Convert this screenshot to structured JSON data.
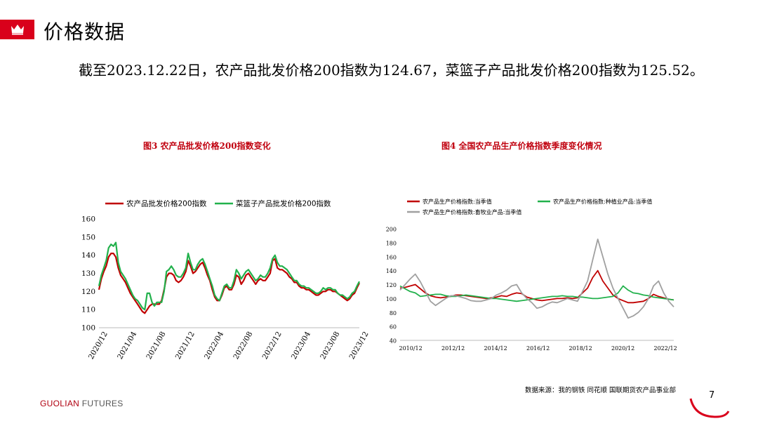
{
  "header": {
    "title": "价格数据"
  },
  "intro_text": "截至2023.12.22日，农产品批发价格200指数为124.67，菜篮子产品批发价格200指数为125.52。",
  "colors": {
    "accent": "#d9001b",
    "series_red": "#c00000",
    "series_green": "#22b14c",
    "series_grey": "#a0a0a0"
  },
  "footer": {
    "source": "数据来源：我的钢铁 同花顺 国联期货农产品事业部",
    "brand_main": "GUOLIAN",
    "brand_sub": "FUTURES",
    "page_number": "7"
  },
  "chart_data": [
    {
      "figure_title": "图3 农产品批发价格200指数变化",
      "type": "line",
      "ylim": [
        100,
        160
      ],
      "yticks": [
        100,
        110,
        120,
        130,
        140,
        150,
        160
      ],
      "xticks": [
        "2020/12",
        "2021/04",
        "2021/08",
        "2021/12",
        "2022/04",
        "2022/08",
        "2022/12",
        "2023/04",
        "2023/08",
        "2023/12"
      ],
      "series": [
        {
          "name": "农产品批发价格200指数",
          "values": [
            121,
            127,
            131,
            134,
            139,
            141,
            141,
            139,
            133,
            129,
            127,
            125,
            122,
            119,
            117,
            115,
            113,
            111,
            109,
            108,
            110,
            112,
            113,
            113,
            113,
            113,
            115,
            121,
            128,
            130,
            130,
            129,
            126,
            125,
            126,
            128,
            131,
            137,
            134,
            130,
            131,
            133,
            135,
            136,
            133,
            129,
            126,
            121,
            117,
            115,
            115,
            118,
            122,
            123,
            121,
            121,
            124,
            129,
            128,
            124,
            126,
            129,
            130,
            128,
            126,
            124,
            126,
            127,
            126,
            126,
            128,
            130,
            137,
            138,
            133,
            132,
            132,
            131,
            130,
            128,
            127,
            125,
            125,
            123,
            122,
            122,
            121,
            121,
            120,
            119,
            118,
            118,
            119,
            120,
            120,
            121,
            121,
            120,
            120,
            119,
            118,
            117,
            116,
            115,
            116,
            118,
            119,
            122,
            124.67
          ]
        },
        {
          "name": "菜篮子产品批发价格200指数",
          "values": [
            123,
            129,
            133,
            137,
            144,
            146,
            145,
            147,
            136,
            131,
            129,
            127,
            124,
            121,
            118,
            116,
            115,
            113,
            111,
            110,
            119,
            119,
            114,
            112,
            114,
            114,
            114,
            120,
            131,
            132,
            134,
            132,
            129,
            128,
            128,
            130,
            133,
            141,
            136,
            132,
            132,
            135,
            137,
            138,
            135,
            131,
            127,
            123,
            118,
            116,
            115,
            119,
            123,
            124,
            122,
            122,
            126,
            132,
            130,
            127,
            129,
            131,
            132,
            130,
            128,
            126,
            127,
            129,
            128,
            128,
            130,
            133,
            138,
            140,
            136,
            134,
            134,
            133,
            132,
            130,
            128,
            126,
            126,
            124,
            123,
            123,
            122,
            122,
            121,
            120,
            119,
            119,
            120,
            122,
            121,
            122,
            122,
            121,
            121,
            119,
            118,
            118,
            117,
            116,
            117,
            119,
            120,
            123,
            125.52
          ]
        }
      ]
    },
    {
      "figure_title": "图4 全国农产品生产价格指数季度变化情况",
      "type": "line",
      "ylim": [
        40,
        200
      ],
      "yticks": [
        40,
        60,
        80,
        100,
        120,
        140,
        160,
        180,
        200
      ],
      "xticks": [
        "2010/12",
        "2012/12",
        "2014/12",
        "2016/12",
        "2018/12",
        "2020/12",
        "2022/12"
      ],
      "series": [
        {
          "name": "农产品生产价格指数:当季值",
          "values": [
            115,
            116,
            118,
            120,
            114,
            108,
            104,
            102,
            101,
            102,
            103,
            105,
            105,
            104,
            103,
            102,
            101,
            100,
            101,
            102,
            104,
            103,
            106,
            108,
            107,
            102,
            100,
            98,
            97,
            98,
            99,
            100,
            100,
            101,
            100,
            101,
            108,
            115,
            130,
            140,
            125,
            115,
            105,
            100,
            97,
            94,
            94,
            95,
            96,
            100,
            106,
            103,
            101,
            99,
            98
          ]
        },
        {
          "name": "农产品生产价格指数:种植业产品:当季值",
          "values": [
            118,
            114,
            110,
            108,
            103,
            104,
            105,
            106,
            106,
            104,
            103,
            103,
            104,
            105,
            104,
            103,
            102,
            101,
            100,
            100,
            99,
            98,
            97,
            96,
            97,
            98,
            99,
            100,
            101,
            102,
            103,
            103,
            104,
            103,
            103,
            102,
            102,
            101,
            100,
            100,
            101,
            102,
            103,
            108,
            118,
            112,
            108,
            107,
            105,
            104,
            102,
            101,
            100,
            99,
            98
          ]
        },
        {
          "name": "农产品生产价格指数:畜牧业产品:当季值",
          "values": [
            112,
            120,
            128,
            135,
            124,
            110,
            96,
            90,
            95,
            100,
            104,
            104,
            102,
            100,
            97,
            96,
            96,
            98,
            100,
            105,
            108,
            112,
            118,
            120,
            108,
            100,
            94,
            86,
            88,
            92,
            95,
            94,
            97,
            100,
            98,
            96,
            110,
            125,
            155,
            185,
            160,
            135,
            115,
            100,
            86,
            72,
            75,
            80,
            88,
            100,
            118,
            125,
            108,
            96,
            88
          ]
        }
      ]
    }
  ]
}
